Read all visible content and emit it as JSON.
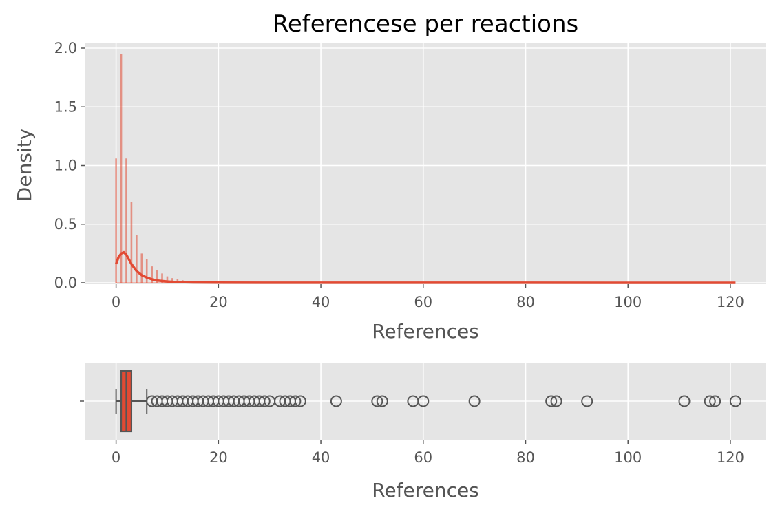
{
  "chart_data": [
    {
      "type": "histogram",
      "title": "Referencese per reactions",
      "xlabel": "References",
      "ylabel": "Density",
      "xlim": [
        -6,
        127
      ],
      "ylim": [
        0,
        2.05
      ],
      "xticks": [
        "0",
        "20",
        "40",
        "60",
        "80",
        "100",
        "120"
      ],
      "yticks": [
        "0.0",
        "0.5",
        "1.0",
        "1.5",
        "2.0"
      ],
      "grid": true,
      "style": "ggplot",
      "bin_width": 1,
      "bars": [
        {
          "x": 0,
          "density": 1.06
        },
        {
          "x": 1,
          "density": 1.95
        },
        {
          "x": 2,
          "density": 1.06
        },
        {
          "x": 3,
          "density": 0.69
        },
        {
          "x": 4,
          "density": 0.41
        },
        {
          "x": 5,
          "density": 0.25
        },
        {
          "x": 6,
          "density": 0.2
        },
        {
          "x": 7,
          "density": 0.14
        },
        {
          "x": 8,
          "density": 0.11
        },
        {
          "x": 9,
          "density": 0.08
        },
        {
          "x": 10,
          "density": 0.055
        },
        {
          "x": 11,
          "density": 0.04
        },
        {
          "x": 12,
          "density": 0.03
        },
        {
          "x": 13,
          "density": 0.022
        },
        {
          "x": 14,
          "density": 0.016
        },
        {
          "x": 15,
          "density": 0.012
        },
        {
          "x": 16,
          "density": 0.009
        },
        {
          "x": 17,
          "density": 0.007
        },
        {
          "x": 18,
          "density": 0.005
        }
      ],
      "kde": {
        "x": [
          0,
          0.5,
          1,
          1.5,
          2,
          2.5,
          3,
          4,
          5,
          6,
          7,
          8,
          10,
          12,
          15,
          20,
          30,
          50,
          80,
          121
        ],
        "y": [
          0.16,
          0.22,
          0.25,
          0.26,
          0.24,
          0.2,
          0.16,
          0.1,
          0.065,
          0.045,
          0.03,
          0.02,
          0.011,
          0.006,
          0.003,
          0.0015,
          0.0008,
          0.0005,
          0.0003,
          0.0002
        ]
      },
      "color": "#e24a33"
    },
    {
      "type": "boxplot",
      "xlabel": "References",
      "ylabel": "",
      "xlim": [
        -6,
        127
      ],
      "xticks": [
        "0",
        "20",
        "40",
        "60",
        "80",
        "100",
        "120"
      ],
      "ytick_labels": [
        ""
      ],
      "whisker_low": 0,
      "q1": 1,
      "median": 2,
      "q3": 3,
      "whisker_high": 6,
      "fliers": [
        7,
        8,
        9,
        10,
        11,
        12,
        13,
        14,
        15,
        16,
        17,
        18,
        19,
        20,
        21,
        22,
        23,
        24,
        25,
        26,
        27,
        28,
        29,
        30,
        32,
        33,
        34,
        35,
        36,
        43,
        51,
        52,
        58,
        60,
        70,
        85,
        86,
        92,
        111,
        116,
        117,
        121
      ],
      "box_color": "#e24a33"
    }
  ]
}
